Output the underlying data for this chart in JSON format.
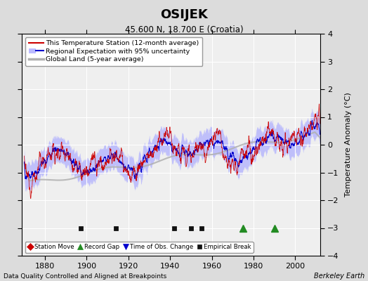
{
  "title": "OSIJEK",
  "subtitle": "45.600 N, 18.700 E (Croatia)",
  "ylabel": "Temperature Anomaly (°C)",
  "xlabel_note": "Data Quality Controlled and Aligned at Breakpoints",
  "xlabel_credit": "Berkeley Earth",
  "ylim": [
    -4,
    4
  ],
  "xlim": [
    1869,
    2012
  ],
  "xticks": [
    1880,
    1900,
    1920,
    1940,
    1960,
    1980,
    2000
  ],
  "yticks": [
    -4,
    -3,
    -2,
    -1,
    0,
    1,
    2,
    3,
    4
  ],
  "bg_color": "#dcdcdc",
  "plot_bg_color": "#efefef",
  "grid_color": "#ffffff",
  "red_color": "#cc0000",
  "blue_color": "#0000cc",
  "band_color": "#b0b0ff",
  "gray_color": "#b0b0b0",
  "legend_items": [
    "This Temperature Station (12-month average)",
    "Regional Expectation with 95% uncertainty",
    "Global Land (5-year average)"
  ],
  "marker_items": [
    {
      "label": "Station Move",
      "color": "#cc0000",
      "marker": "D"
    },
    {
      "label": "Record Gap",
      "color": "#228B22",
      "marker": "^"
    },
    {
      "label": "Time of Obs. Change",
      "color": "#0000cc",
      "marker": "v"
    },
    {
      "label": "Empirical Break",
      "color": "#111111",
      "marker": "s"
    }
  ],
  "station_moves": [],
  "record_gaps": [
    1975.0,
    1990.0
  ],
  "obs_changes": [],
  "emp_breaks": [
    1897.0,
    1914.0,
    1942.0,
    1950.0,
    1955.0
  ],
  "marker_y": -3.0
}
